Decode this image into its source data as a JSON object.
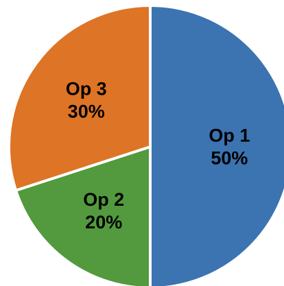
{
  "chart_data": {
    "type": "pie",
    "title": "",
    "legend": "none",
    "slices": [
      {
        "label": "Op 1",
        "value": 50,
        "value_label": "50%",
        "color": "#3c73b1"
      },
      {
        "label": "Op 2",
        "value": 20,
        "value_label": "20%",
        "color": "#529a3d"
      },
      {
        "label": "Op 3",
        "value": 30,
        "value_label": "30%",
        "color": "#de7426"
      }
    ]
  }
}
